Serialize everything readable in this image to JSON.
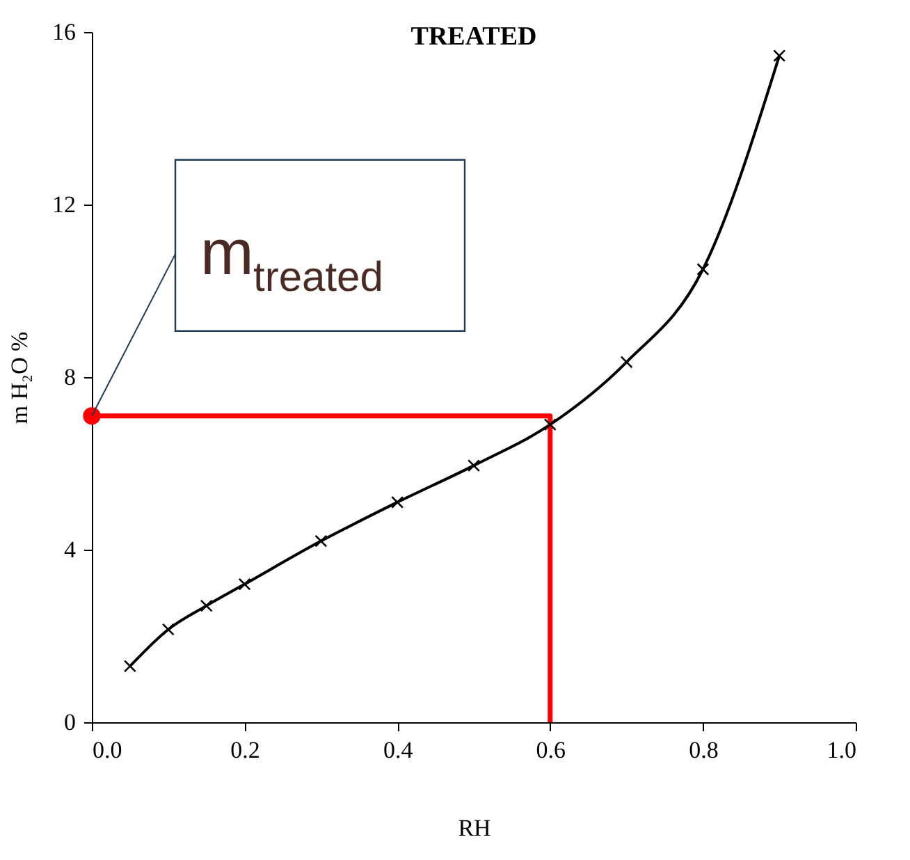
{
  "chart_data": {
    "type": "line",
    "title": "TREATED",
    "xlabel": "RH",
    "ylabel": "m H₂O %",
    "xlim": [
      0,
      1
    ],
    "ylim": [
      0,
      16
    ],
    "xticks": [
      {
        "value": 0,
        "label": "0.0"
      },
      {
        "value": 0.2,
        "label": "0.2"
      },
      {
        "value": 0.4,
        "label": "0.4"
      },
      {
        "value": 0.6,
        "label": "0.6"
      },
      {
        "value": 0.8,
        "label": "0.8"
      },
      {
        "value": 1,
        "label": "1.0"
      }
    ],
    "yticks": [
      0,
      4,
      8,
      12,
      16
    ],
    "series": [
      {
        "color": "#000000",
        "marker": "cross",
        "x": [
          0.05,
          0.1,
          0.15,
          0.2,
          0.3,
          0.4,
          0.5,
          0.6,
          0.7,
          0.8,
          0.9
        ],
        "values": [
          1.3,
          2.15,
          2.7,
          3.2,
          4.2,
          5.1,
          5.95,
          6.9,
          8.35,
          10.5,
          15.45
        ]
      },
      {
        "color": "#ff0000",
        "marker": "none",
        "x": [
          0,
          0.6,
          0.6
        ],
        "values": [
          7.1,
          7.1,
          0
        ]
      },
      {
        "type": "scatter",
        "color": "#ff0000",
        "marker": "circle",
        "x": [
          0
        ],
        "values": [
          7.1
        ]
      }
    ],
    "annotations": [
      {
        "text": "m$_{treated}$",
        "x": 0,
        "y": 7.1
      }
    ]
  }
}
